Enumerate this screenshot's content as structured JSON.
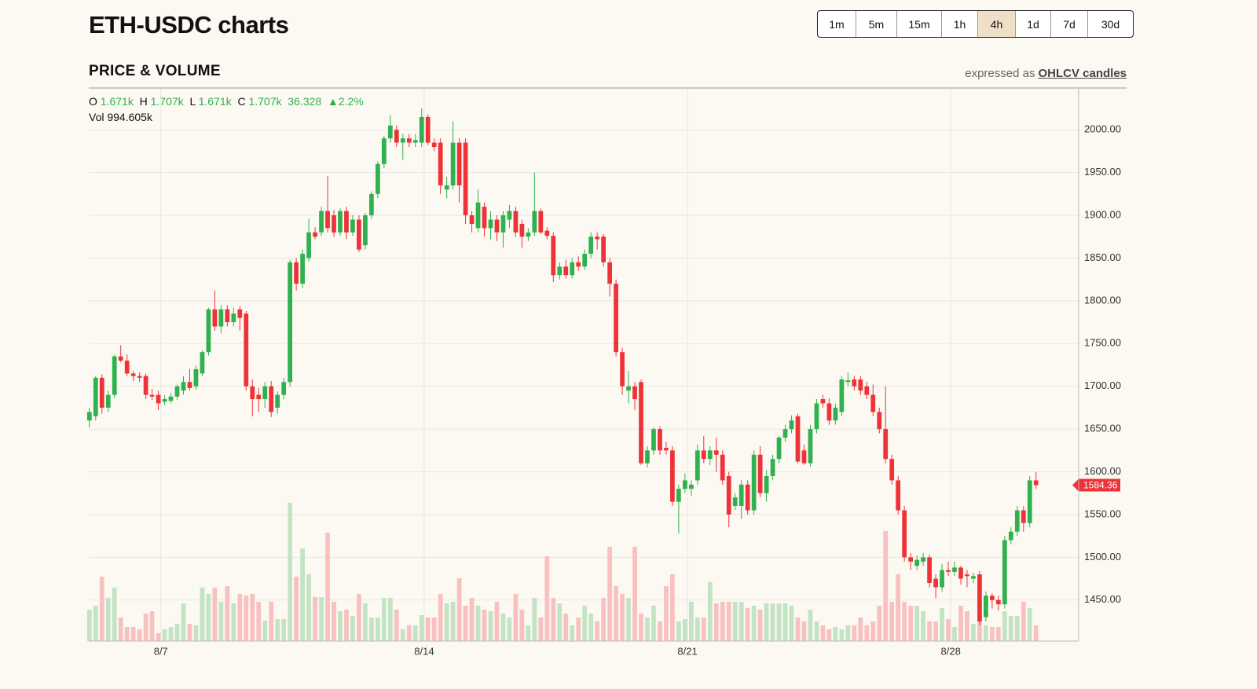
{
  "header": {
    "title": "ETH-USDC charts",
    "intervals": [
      "1m",
      "5m",
      "15m",
      "1h",
      "4h",
      "1d",
      "7d",
      "30d"
    ],
    "selected_interval": 4,
    "section": "PRICE & VOLUME",
    "expressed_as": "expressed as",
    "format_link": "OHLCV candles"
  },
  "readout": {
    "o_label": "O",
    "o": "1.671k",
    "h_label": "H",
    "h": "1.707k",
    "l_label": "L",
    "l": "1.671k",
    "c_label": "C",
    "c": "1.707k",
    "change": "36.328",
    "change_pct": "▲2.2%",
    "vol_label": "Vol",
    "vol": "994.605k"
  },
  "chart_data": {
    "type": "candlestick",
    "up_color": "#2fb14f",
    "down_color": "#ee3338",
    "volume_up_color": "#c3e4c2",
    "volume_down_color": "#f8c1c0",
    "grid": true,
    "xlim": [
      -0.1,
      157.8
    ],
    "xticks": [
      {
        "value": 11.4,
        "label": "8/7"
      },
      {
        "value": 53.4,
        "label": "8/14"
      },
      {
        "value": 95.4,
        "label": "8/21"
      },
      {
        "value": 137.4,
        "label": "8/28"
      }
    ],
    "ylim": [
      1402,
      2048
    ],
    "yticks": [
      {
        "value": 1450,
        "label": "1450.00"
      },
      {
        "value": 1500,
        "label": "1500.00"
      },
      {
        "value": 1550,
        "label": "1550.00"
      },
      {
        "value": 1600,
        "label": "1600.00"
      },
      {
        "value": 1650,
        "label": "1650.00"
      },
      {
        "value": 1700,
        "label": "1700.00"
      },
      {
        "value": 1750,
        "label": "1750.00"
      },
      {
        "value": 1800,
        "label": "1800.00"
      },
      {
        "value": 1850,
        "label": "1850.00"
      },
      {
        "value": 1900,
        "label": "1900.00"
      },
      {
        "value": 1950,
        "label": "1950.00"
      },
      {
        "value": 2000,
        "label": "2000.00"
      }
    ],
    "vlim": [
      0,
      200
    ],
    "candles": [
      [
        1660,
        1675,
        1652,
        1670
      ],
      [
        1665,
        1712,
        1660,
        1710
      ],
      [
        1710,
        1714,
        1668,
        1675
      ],
      [
        1675,
        1695,
        1670,
        1690
      ],
      [
        1690,
        1737,
        1686,
        1735
      ],
      [
        1735,
        1748,
        1728,
        1730
      ],
      [
        1730,
        1737,
        1712,
        1715
      ],
      [
        1715,
        1718,
        1706,
        1712
      ],
      [
        1712,
        1716,
        1705,
        1710
      ],
      [
        1712,
        1715,
        1685,
        1690
      ],
      [
        1690,
        1697,
        1684,
        1688
      ],
      [
        1690,
        1695,
        1672,
        1680
      ],
      [
        1682,
        1690,
        1678,
        1685
      ],
      [
        1683,
        1692,
        1680,
        1688
      ],
      [
        1688,
        1702,
        1684,
        1700
      ],
      [
        1695,
        1712,
        1690,
        1705
      ],
      [
        1705,
        1720,
        1695,
        1698
      ],
      [
        1700,
        1724,
        1696,
        1720
      ],
      [
        1715,
        1742,
        1712,
        1740
      ],
      [
        1740,
        1792,
        1736,
        1790
      ],
      [
        1790,
        1812,
        1765,
        1770
      ],
      [
        1770,
        1795,
        1762,
        1790
      ],
      [
        1790,
        1795,
        1770,
        1775
      ],
      [
        1775,
        1792,
        1770,
        1785
      ],
      [
        1790,
        1794,
        1765,
        1780
      ],
      [
        1785,
        1788,
        1695,
        1700
      ],
      [
        1700,
        1708,
        1665,
        1685
      ],
      [
        1690,
        1698,
        1670,
        1685
      ],
      [
        1685,
        1705,
        1675,
        1700
      ],
      [
        1700,
        1706,
        1664,
        1670
      ],
      [
        1675,
        1694,
        1668,
        1690
      ],
      [
        1690,
        1710,
        1685,
        1705
      ],
      [
        1705,
        1848,
        1700,
        1845
      ],
      [
        1845,
        1850,
        1812,
        1820
      ],
      [
        1820,
        1860,
        1815,
        1855
      ],
      [
        1850,
        1896,
        1846,
        1880
      ],
      [
        1880,
        1886,
        1872,
        1875
      ],
      [
        1880,
        1910,
        1876,
        1905
      ],
      [
        1905,
        1946,
        1880,
        1885
      ],
      [
        1900,
        1906,
        1875,
        1880
      ],
      [
        1880,
        1908,
        1876,
        1905
      ],
      [
        1905,
        1910,
        1872,
        1880
      ],
      [
        1880,
        1900,
        1876,
        1895
      ],
      [
        1895,
        1900,
        1857,
        1860
      ],
      [
        1865,
        1903,
        1860,
        1900
      ],
      [
        1900,
        1928,
        1896,
        1925
      ],
      [
        1925,
        1963,
        1920,
        1960
      ],
      [
        1960,
        1993,
        1955,
        1990
      ],
      [
        1990,
        2017,
        1985,
        2005
      ],
      [
        2000,
        2005,
        1980,
        1985
      ],
      [
        1985,
        1995,
        1965,
        1990
      ],
      [
        1990,
        1995,
        1980,
        1985
      ],
      [
        1985,
        1995,
        1980,
        1988
      ],
      [
        1985,
        2025,
        1980,
        2015
      ],
      [
        2015,
        2018,
        1982,
        1985
      ],
      [
        1985,
        1990,
        1975,
        1980
      ],
      [
        1985,
        1990,
        1925,
        1935
      ],
      [
        1930,
        1945,
        1920,
        1935
      ],
      [
        1935,
        2010,
        1930,
        1985
      ],
      [
        1985,
        1990,
        1915,
        1935
      ],
      [
        1985,
        1990,
        1890,
        1900
      ],
      [
        1900,
        1905,
        1880,
        1890
      ],
      [
        1885,
        1930,
        1880,
        1915
      ],
      [
        1910,
        1915,
        1875,
        1885
      ],
      [
        1885,
        1905,
        1872,
        1895
      ],
      [
        1895,
        1900,
        1870,
        1880
      ],
      [
        1880,
        1905,
        1862,
        1900
      ],
      [
        1895,
        1912,
        1885,
        1905
      ],
      [
        1905,
        1910,
        1875,
        1880
      ],
      [
        1890,
        1895,
        1862,
        1875
      ],
      [
        1875,
        1885,
        1870,
        1880
      ],
      [
        1880,
        1950,
        1876,
        1905
      ],
      [
        1905,
        1908,
        1878,
        1880
      ],
      [
        1882,
        1886,
        1872,
        1876
      ],
      [
        1876,
        1880,
        1822,
        1830
      ],
      [
        1830,
        1845,
        1825,
        1840
      ],
      [
        1840,
        1848,
        1826,
        1830
      ],
      [
        1830,
        1850,
        1826,
        1845
      ],
      [
        1845,
        1852,
        1835,
        1840
      ],
      [
        1840,
        1860,
        1836,
        1855
      ],
      [
        1855,
        1880,
        1850,
        1875
      ],
      [
        1875,
        1880,
        1860,
        1872
      ],
      [
        1875,
        1878,
        1840,
        1845
      ],
      [
        1845,
        1850,
        1805,
        1820
      ],
      [
        1820,
        1825,
        1735,
        1740
      ],
      [
        1740,
        1745,
        1690,
        1700
      ],
      [
        1695,
        1718,
        1680,
        1700
      ],
      [
        1700,
        1705,
        1672,
        1685
      ],
      [
        1705,
        1708,
        1608,
        1610
      ],
      [
        1610,
        1630,
        1605,
        1625
      ],
      [
        1625,
        1652,
        1620,
        1650
      ],
      [
        1650,
        1653,
        1620,
        1625
      ],
      [
        1628,
        1635,
        1620,
        1625
      ],
      [
        1625,
        1630,
        1560,
        1565
      ],
      [
        1565,
        1585,
        1528,
        1580
      ],
      [
        1580,
        1598,
        1575,
        1590
      ],
      [
        1580,
        1590,
        1572,
        1585
      ],
      [
        1590,
        1632,
        1585,
        1625
      ],
      [
        1625,
        1642,
        1610,
        1615
      ],
      [
        1615,
        1630,
        1608,
        1625
      ],
      [
        1625,
        1640,
        1600,
        1620
      ],
      [
        1620,
        1625,
        1585,
        1590
      ],
      [
        1595,
        1600,
        1535,
        1550
      ],
      [
        1560,
        1575,
        1555,
        1570
      ],
      [
        1560,
        1590,
        1545,
        1585
      ],
      [
        1585,
        1590,
        1550,
        1555
      ],
      [
        1555,
        1625,
        1550,
        1620
      ],
      [
        1620,
        1630,
        1570,
        1575
      ],
      [
        1575,
        1602,
        1565,
        1595
      ],
      [
        1595,
        1620,
        1590,
        1615
      ],
      [
        1615,
        1642,
        1610,
        1640
      ],
      [
        1640,
        1655,
        1635,
        1650
      ],
      [
        1650,
        1666,
        1645,
        1660
      ],
      [
        1665,
        1668,
        1610,
        1612
      ],
      [
        1625,
        1632,
        1608,
        1610
      ],
      [
        1610,
        1655,
        1606,
        1650
      ],
      [
        1650,
        1685,
        1645,
        1680
      ],
      [
        1685,
        1690,
        1675,
        1680
      ],
      [
        1680,
        1686,
        1655,
        1660
      ],
      [
        1660,
        1680,
        1655,
        1675
      ],
      [
        1670,
        1712,
        1665,
        1708
      ],
      [
        1705,
        1716,
        1700,
        1707
      ],
      [
        1708,
        1712,
        1695,
        1700
      ],
      [
        1708,
        1712,
        1690,
        1695
      ],
      [
        1700,
        1705,
        1685,
        1690
      ],
      [
        1690,
        1702,
        1665,
        1670
      ],
      [
        1670,
        1675,
        1645,
        1650
      ],
      [
        1650,
        1700,
        1610,
        1615
      ],
      [
        1615,
        1620,
        1585,
        1590
      ],
      [
        1590,
        1595,
        1550,
        1555
      ],
      [
        1555,
        1560,
        1495,
        1500
      ],
      [
        1500,
        1505,
        1485,
        1495
      ],
      [
        1490,
        1502,
        1485,
        1497
      ],
      [
        1495,
        1505,
        1490,
        1500
      ],
      [
        1500,
        1503,
        1465,
        1470
      ],
      [
        1475,
        1480,
        1452,
        1465
      ],
      [
        1465,
        1492,
        1460,
        1485
      ],
      [
        1485,
        1495,
        1478,
        1483
      ],
      [
        1483,
        1495,
        1478,
        1488
      ],
      [
        1488,
        1490,
        1468,
        1475
      ],
      [
        1480,
        1485,
        1465,
        1478
      ],
      [
        1475,
        1482,
        1470,
        1478
      ],
      [
        1480,
        1484,
        1420,
        1425
      ],
      [
        1430,
        1460,
        1425,
        1455
      ],
      [
        1455,
        1458,
        1440,
        1450
      ],
      [
        1450,
        1455,
        1438,
        1445
      ],
      [
        1445,
        1525,
        1440,
        1520
      ],
      [
        1520,
        1535,
        1515,
        1530
      ],
      [
        1530,
        1560,
        1525,
        1555
      ],
      [
        1555,
        1560,
        1530,
        1540
      ],
      [
        1540,
        1595,
        1535,
        1590
      ],
      [
        1590,
        1600,
        1580,
        1584.36
      ]
    ],
    "volume": [
      40,
      45,
      82,
      55,
      68,
      30,
      18,
      18,
      15,
      35,
      38,
      10,
      15,
      18,
      22,
      48,
      22,
      20,
      68,
      60,
      68,
      50,
      70,
      48,
      60,
      58,
      60,
      50,
      26,
      50,
      28,
      28,
      176,
      82,
      118,
      85,
      56,
      56,
      138,
      50,
      38,
      40,
      32,
      60,
      48,
      30,
      30,
      55,
      55,
      40,
      15,
      20,
      20,
      33,
      30,
      30,
      60,
      48,
      50,
      80,
      45,
      55,
      45,
      40,
      38,
      50,
      35,
      30,
      60,
      40,
      20,
      55,
      30,
      108,
      55,
      48,
      35,
      20,
      30,
      45,
      35,
      25,
      55,
      120,
      70,
      60,
      55,
      120,
      35,
      30,
      45,
      25,
      70,
      85,
      25,
      28,
      50,
      30,
      30,
      75,
      48,
      50,
      50,
      50,
      50,
      42,
      45,
      40,
      48,
      48,
      48,
      48,
      45,
      30,
      25,
      40,
      25,
      20,
      15,
      18,
      15,
      20,
      20,
      30,
      20,
      25,
      45,
      140,
      50,
      85,
      50,
      45,
      45,
      38,
      25,
      25,
      42,
      28,
      18,
      45,
      38,
      22,
      32,
      20,
      18,
      18,
      38,
      32,
      32,
      50,
      42,
      20
    ]
  }
}
